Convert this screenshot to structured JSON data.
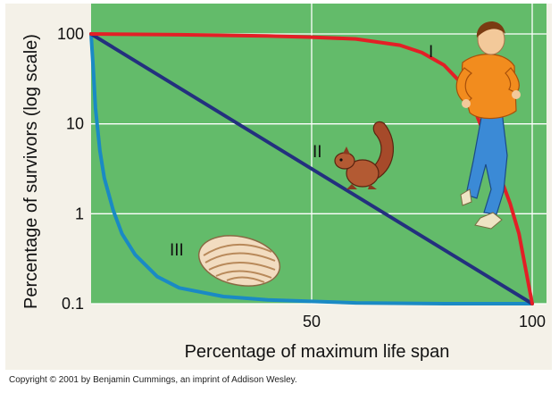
{
  "chart_data": {
    "type": "line",
    "xlabel": "Percentage of maximum life span",
    "ylabel": "Percentage of survivors (log scale)",
    "xlim": [
      0,
      100
    ],
    "ylim": [
      0.1,
      100
    ],
    "y_scale": "log",
    "x_ticks": [
      "50",
      "100"
    ],
    "y_ticks": [
      "100",
      "10",
      "1",
      "0.1"
    ],
    "grid": true,
    "series": [
      {
        "name": "I",
        "color": "#e31f26",
        "x": [
          0,
          20,
          40,
          50,
          60,
          70,
          75,
          80,
          85,
          90,
          95,
          97,
          100
        ],
        "y": [
          100,
          98,
          95,
          92,
          88,
          75,
          62,
          45,
          25,
          6,
          1.3,
          0.6,
          0.1
        ]
      },
      {
        "name": "II",
        "color": "#23307e",
        "x": [
          0,
          100
        ],
        "y": [
          100,
          0.1
        ]
      },
      {
        "name": "III",
        "color": "#1a8ac4",
        "x": [
          0,
          0.5,
          1,
          2,
          3,
          5,
          7,
          10,
          15,
          20,
          30,
          40,
          60,
          80,
          100
        ],
        "y": [
          100,
          40,
          15,
          5,
          2.5,
          1.1,
          0.6,
          0.35,
          0.2,
          0.15,
          0.12,
          0.11,
          0.102,
          0.1,
          0.1
        ]
      }
    ],
    "colors": {
      "plot_background": "#63bb6a",
      "grid": "#ffffff"
    }
  },
  "illustrations": [
    "running-man",
    "squirrel",
    "oyster"
  ],
  "copyright": "Copyright © 2001 by Benjamin Cummings, an imprint of Addison Wesley."
}
